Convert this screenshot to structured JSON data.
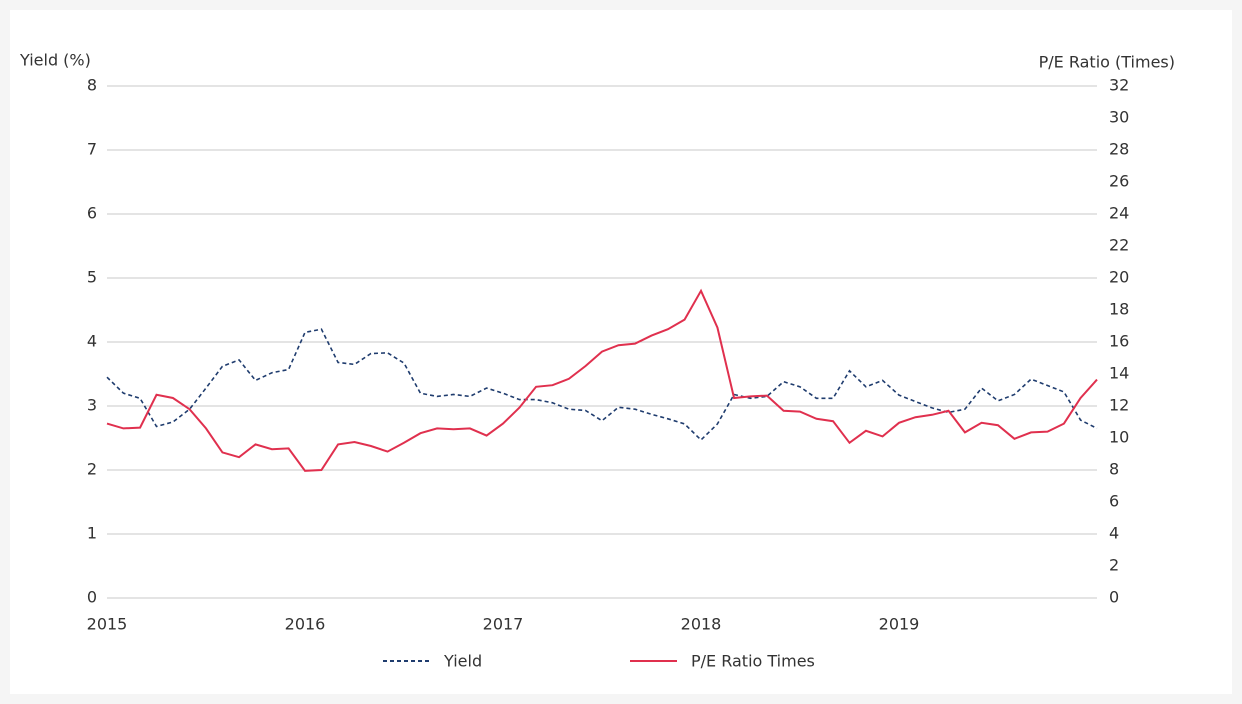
{
  "chart_data": {
    "type": "line",
    "y_label": "Yield (%)",
    "y2_label": "P/E Ratio (Times)",
    "x": [
      2015,
      2015.083,
      2015.167,
      2015.25,
      2015.333,
      2015.417,
      2015.5,
      2015.583,
      2015.667,
      2015.75,
      2015.833,
      2015.917,
      2016,
      2016.083,
      2016.167,
      2016.25,
      2016.333,
      2016.417,
      2016.5,
      2016.583,
      2016.667,
      2016.75,
      2016.833,
      2016.917,
      2017,
      2017.083,
      2017.167,
      2017.25,
      2017.333,
      2017.417,
      2017.5,
      2017.583,
      2017.667,
      2017.75,
      2017.833,
      2017.917,
      2018,
      2018.083,
      2018.167,
      2018.25,
      2018.333,
      2018.417,
      2018.5,
      2018.583,
      2018.667,
      2018.75,
      2018.833,
      2018.917,
      2019,
      2019.083,
      2019.167,
      2019.25,
      2019.333,
      2019.417,
      2019.5,
      2019.583,
      2019.667,
      2019.75,
      2019.833,
      2019.917,
      2020
    ],
    "series": [
      {
        "name": "Yield",
        "color": "#1f3c6e",
        "style": "dashed",
        "axis": "y",
        "values": [
          3.45,
          3.2,
          3.12,
          2.68,
          2.75,
          2.95,
          3.28,
          3.62,
          3.72,
          3.4,
          3.52,
          3.57,
          4.15,
          4.2,
          3.68,
          3.65,
          3.82,
          3.83,
          3.67,
          3.2,
          3.15,
          3.18,
          3.15,
          3.28,
          3.2,
          3.1,
          3.1,
          3.05,
          2.95,
          2.93,
          2.77,
          2.98,
          2.95,
          2.87,
          2.8,
          2.72,
          2.47,
          2.72,
          3.18,
          3.12,
          3.15,
          3.38,
          3.3,
          3.12,
          3.12,
          3.55,
          3.3,
          3.4,
          3.17,
          3.07,
          2.97,
          2.9,
          2.95,
          3.28,
          3.08,
          3.18,
          3.42,
          3.32,
          3.22,
          2.78,
          2.65
        ]
      },
      {
        "name": "P/E Ratio Times",
        "color": "#e0304e",
        "style": "solid",
        "axis": "y2",
        "values": [
          10.9,
          10.6,
          10.65,
          12.7,
          12.5,
          11.8,
          10.6,
          9.1,
          8.8,
          9.6,
          9.3,
          9.35,
          7.95,
          8.0,
          9.6,
          9.75,
          9.5,
          9.15,
          9.7,
          10.3,
          10.6,
          10.55,
          10.6,
          10.15,
          10.9,
          11.9,
          13.2,
          13.3,
          13.7,
          14.5,
          15.4,
          15.8,
          15.9,
          16.4,
          16.8,
          17.4,
          19.2,
          16.9,
          12.5,
          12.6,
          12.65,
          11.7,
          11.65,
          11.2,
          11.05,
          9.7,
          10.45,
          10.1,
          10.95,
          11.3,
          11.45,
          11.7,
          10.35,
          10.95,
          10.8,
          9.95,
          10.35,
          10.4,
          10.9,
          12.5,
          13.65
        ]
      }
    ],
    "xlim": [
      2015,
      2020
    ],
    "xticks": [
      2015,
      2016,
      2017,
      2018,
      2019
    ],
    "ylim": [
      0,
      8
    ],
    "yticks": [
      0,
      1,
      2,
      3,
      4,
      5,
      6,
      7,
      8
    ],
    "y2lim": [
      0,
      32
    ],
    "y2ticks": [
      0,
      2,
      4,
      6,
      8,
      10,
      12,
      14,
      16,
      18,
      20,
      22,
      24,
      26,
      28,
      30,
      32
    ],
    "grid": true,
    "legend": "bottom"
  }
}
